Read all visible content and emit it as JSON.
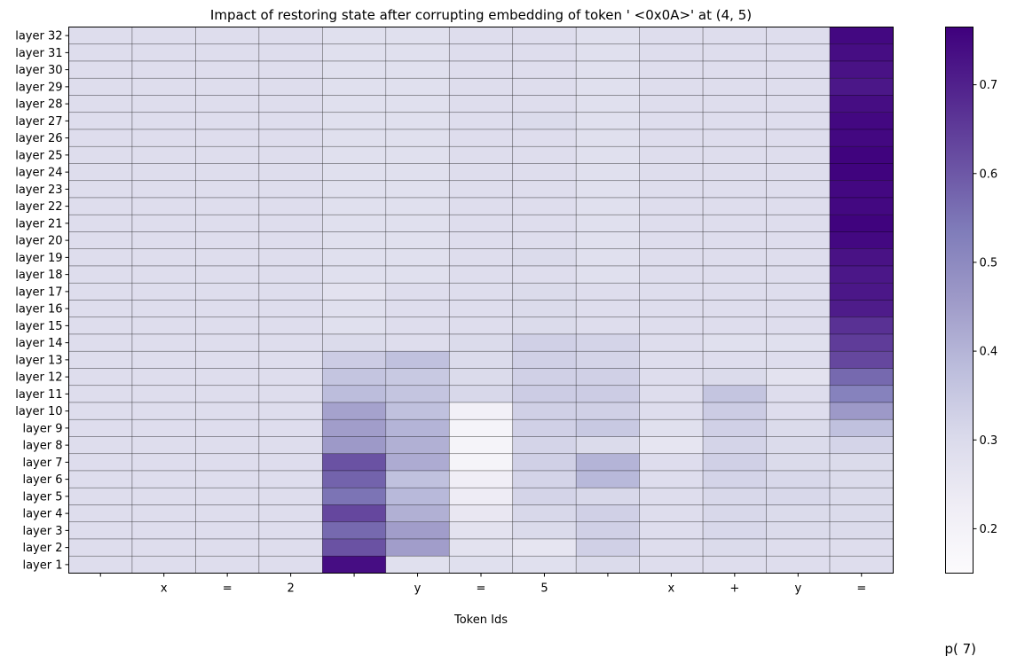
{
  "chart_data": {
    "type": "heatmap",
    "title": "Impact of restoring state after corrupting embedding of token ' <0x0A>' at (4, 5)",
    "xlabel": "Token Ids",
    "ylabel": "",
    "colorbar_label": "p( 7)",
    "colormap": "Purples",
    "color_range": [
      0.15,
      0.765
    ],
    "colorbar_ticks": [
      "0.2",
      "0.3",
      "0.4",
      "0.5",
      "0.6",
      "0.7"
    ],
    "x_tick_labels": [
      "",
      "x",
      "=",
      "2",
      "",
      "y",
      "=",
      "5",
      "",
      "x",
      "+",
      "y",
      "="
    ],
    "y_tick_labels": [
      "layer 32",
      "layer 31",
      "layer 30",
      "layer 29",
      "layer 28",
      "layer 27",
      "layer 26",
      "layer 25",
      "layer 24",
      "layer 23",
      "layer 22",
      "layer 21",
      "layer 20",
      "layer 19",
      "layer 18",
      "layer 17",
      "layer 16",
      "layer 15",
      "layer 14",
      "layer 13",
      "layer 12",
      "layer 11",
      "layer 10",
      "layer 9",
      "layer 8",
      "layer 7",
      "layer 6",
      "layer 5",
      "layer 4",
      "layer 3",
      "layer 2",
      "layer 1"
    ],
    "values": [
      [
        0.29,
        0.29,
        0.29,
        0.29,
        0.28,
        0.28,
        0.29,
        0.29,
        0.28,
        0.29,
        0.29,
        0.29,
        0.75
      ],
      [
        0.29,
        0.29,
        0.29,
        0.29,
        0.28,
        0.28,
        0.29,
        0.29,
        0.28,
        0.29,
        0.29,
        0.29,
        0.74
      ],
      [
        0.29,
        0.29,
        0.29,
        0.29,
        0.28,
        0.28,
        0.29,
        0.29,
        0.28,
        0.29,
        0.29,
        0.29,
        0.73
      ],
      [
        0.29,
        0.29,
        0.29,
        0.29,
        0.28,
        0.28,
        0.29,
        0.29,
        0.28,
        0.29,
        0.29,
        0.29,
        0.72
      ],
      [
        0.29,
        0.29,
        0.29,
        0.29,
        0.28,
        0.28,
        0.29,
        0.29,
        0.28,
        0.29,
        0.29,
        0.29,
        0.74
      ],
      [
        0.29,
        0.29,
        0.29,
        0.29,
        0.28,
        0.28,
        0.29,
        0.3,
        0.28,
        0.29,
        0.29,
        0.29,
        0.75
      ],
      [
        0.29,
        0.29,
        0.29,
        0.29,
        0.28,
        0.28,
        0.29,
        0.29,
        0.28,
        0.29,
        0.29,
        0.29,
        0.75
      ],
      [
        0.29,
        0.29,
        0.29,
        0.29,
        0.28,
        0.28,
        0.29,
        0.29,
        0.28,
        0.29,
        0.29,
        0.29,
        0.76
      ],
      [
        0.29,
        0.29,
        0.29,
        0.29,
        0.28,
        0.28,
        0.29,
        0.29,
        0.28,
        0.29,
        0.29,
        0.29,
        0.76
      ],
      [
        0.29,
        0.29,
        0.29,
        0.29,
        0.28,
        0.28,
        0.29,
        0.29,
        0.28,
        0.29,
        0.29,
        0.29,
        0.75
      ],
      [
        0.29,
        0.29,
        0.29,
        0.29,
        0.28,
        0.28,
        0.29,
        0.29,
        0.28,
        0.29,
        0.29,
        0.29,
        0.75
      ],
      [
        0.29,
        0.29,
        0.29,
        0.29,
        0.28,
        0.28,
        0.29,
        0.29,
        0.28,
        0.29,
        0.29,
        0.29,
        0.76
      ],
      [
        0.29,
        0.29,
        0.29,
        0.29,
        0.28,
        0.28,
        0.29,
        0.29,
        0.28,
        0.29,
        0.29,
        0.29,
        0.75
      ],
      [
        0.29,
        0.29,
        0.29,
        0.29,
        0.28,
        0.28,
        0.29,
        0.3,
        0.28,
        0.29,
        0.29,
        0.29,
        0.73
      ],
      [
        0.29,
        0.29,
        0.29,
        0.29,
        0.28,
        0.28,
        0.29,
        0.29,
        0.28,
        0.29,
        0.29,
        0.29,
        0.72
      ],
      [
        0.29,
        0.29,
        0.29,
        0.29,
        0.27,
        0.29,
        0.29,
        0.3,
        0.29,
        0.29,
        0.29,
        0.29,
        0.72
      ],
      [
        0.29,
        0.29,
        0.29,
        0.29,
        0.28,
        0.29,
        0.29,
        0.3,
        0.29,
        0.29,
        0.29,
        0.29,
        0.71
      ],
      [
        0.29,
        0.29,
        0.29,
        0.29,
        0.28,
        0.29,
        0.29,
        0.3,
        0.29,
        0.29,
        0.29,
        0.29,
        0.67
      ],
      [
        0.29,
        0.29,
        0.29,
        0.29,
        0.3,
        0.29,
        0.3,
        0.33,
        0.32,
        0.29,
        0.28,
        0.28,
        0.65
      ],
      [
        0.29,
        0.29,
        0.29,
        0.29,
        0.34,
        0.37,
        0.3,
        0.33,
        0.32,
        0.29,
        0.29,
        0.29,
        0.63
      ],
      [
        0.29,
        0.29,
        0.29,
        0.29,
        0.36,
        0.35,
        0.3,
        0.33,
        0.33,
        0.29,
        0.3,
        0.27,
        0.57
      ],
      [
        0.29,
        0.29,
        0.29,
        0.29,
        0.38,
        0.36,
        0.31,
        0.34,
        0.34,
        0.29,
        0.36,
        0.29,
        0.52
      ],
      [
        0.29,
        0.29,
        0.29,
        0.29,
        0.44,
        0.37,
        0.21,
        0.33,
        0.33,
        0.29,
        0.34,
        0.29,
        0.46
      ],
      [
        0.29,
        0.29,
        0.29,
        0.29,
        0.45,
        0.4,
        0.19,
        0.33,
        0.35,
        0.28,
        0.33,
        0.3,
        0.37
      ],
      [
        0.29,
        0.29,
        0.29,
        0.29,
        0.46,
        0.41,
        0.19,
        0.32,
        0.3,
        0.26,
        0.32,
        0.3,
        0.32
      ],
      [
        0.29,
        0.29,
        0.29,
        0.29,
        0.61,
        0.42,
        0.19,
        0.33,
        0.4,
        0.29,
        0.33,
        0.3,
        0.3
      ],
      [
        0.29,
        0.29,
        0.29,
        0.29,
        0.58,
        0.37,
        0.22,
        0.32,
        0.39,
        0.29,
        0.32,
        0.31,
        0.3
      ],
      [
        0.29,
        0.29,
        0.29,
        0.29,
        0.55,
        0.39,
        0.23,
        0.32,
        0.31,
        0.29,
        0.31,
        0.31,
        0.3
      ],
      [
        0.29,
        0.29,
        0.29,
        0.29,
        0.63,
        0.41,
        0.25,
        0.31,
        0.33,
        0.29,
        0.31,
        0.3,
        0.3
      ],
      [
        0.29,
        0.29,
        0.29,
        0.29,
        0.57,
        0.45,
        0.27,
        0.3,
        0.33,
        0.29,
        0.31,
        0.3,
        0.3
      ],
      [
        0.29,
        0.29,
        0.29,
        0.29,
        0.61,
        0.45,
        0.27,
        0.26,
        0.33,
        0.29,
        0.3,
        0.29,
        0.29
      ],
      [
        0.29,
        0.29,
        0.29,
        0.29,
        0.74,
        0.28,
        0.28,
        0.28,
        0.3,
        0.29,
        0.29,
        0.29,
        0.29
      ]
    ]
  }
}
